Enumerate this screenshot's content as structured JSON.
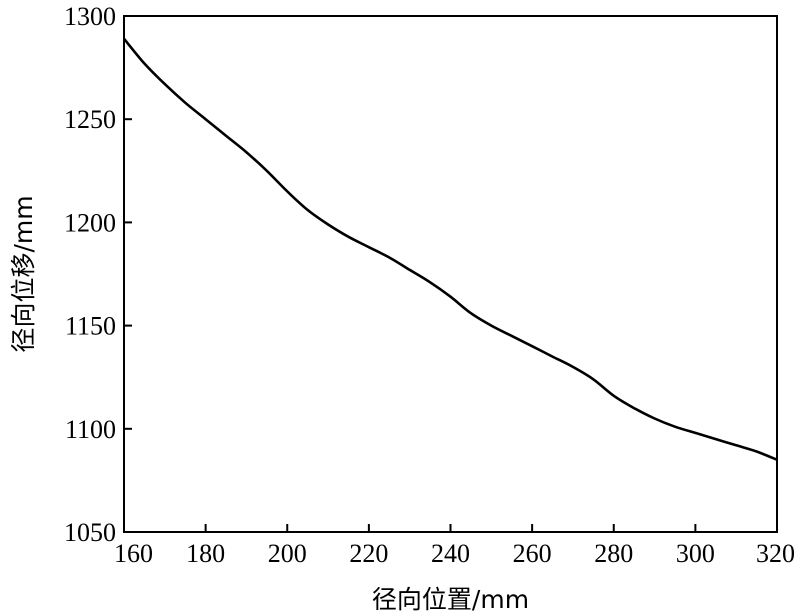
{
  "chart_data": {
    "type": "line",
    "title": "",
    "xlabel": "径向位置/mm",
    "ylabel": "径向位移/mm",
    "xlim": [
      160,
      320
    ],
    "ylim": [
      1050,
      1300
    ],
    "x_ticks": [
      160,
      180,
      200,
      220,
      240,
      260,
      280,
      300,
      320
    ],
    "y_ticks": [
      1050,
      1100,
      1150,
      1200,
      1250,
      1300
    ],
    "grid": false,
    "legend": "none",
    "line_color": "#000000",
    "series": [
      {
        "x": [
          160,
          165,
          170,
          175,
          180,
          185,
          190,
          195,
          200,
          205,
          210,
          215,
          220,
          225,
          230,
          235,
          240,
          245,
          250,
          255,
          260,
          265,
          270,
          275,
          280,
          285,
          290,
          295,
          300,
          305,
          310,
          315,
          320
        ],
        "y": [
          1289,
          1277,
          1267,
          1258,
          1250,
          1242,
          1234,
          1225,
          1215,
          1206,
          1199,
          1193,
          1188,
          1183,
          1177,
          1171,
          1164,
          1156,
          1150,
          1145,
          1140,
          1135,
          1130,
          1124,
          1116,
          1110,
          1105,
          1101,
          1098,
          1095,
          1092,
          1089,
          1085
        ]
      }
    ]
  }
}
